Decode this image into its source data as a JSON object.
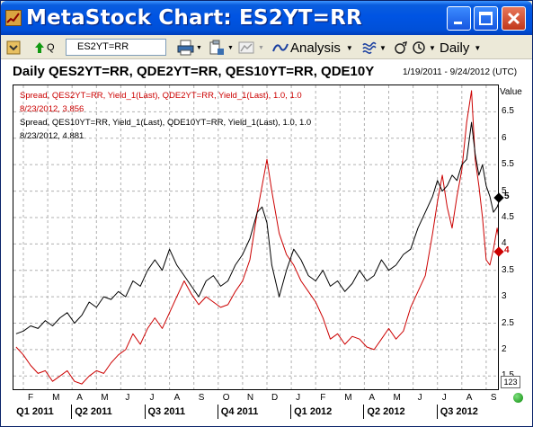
{
  "window": {
    "title": "MetaStock Chart:  ES2YT=RR"
  },
  "toolbar": {
    "quote_label": "Q",
    "symbol": "ES2YT=RR",
    "analysis_label": "Analysis",
    "period_label": "Daily"
  },
  "chart": {
    "title": "Daily QES2YT=RR, QDE2YT=RR, QES10YT=RR, QDE10Y",
    "date_range": "1/19/2011 - 9/24/2012 (UTC)",
    "legend1_line1": "Spread, QES2YT=RR, Yield_1(Last), QDE2YT=RR, Yield_1(Last),  1.0, 1.0",
    "legend1_line2": "8/23/2012, 3.856",
    "legend2_line1": "Spread, QES10YT=RR, Yield_1(Last), QDE10YT=RR, Yield_1(Last),  1.0, 1.0",
    "legend2_line2": "8/23/2012, 4.881",
    "value_axis_title": "Value",
    "value_box": "123",
    "colors": {
      "series_2y": "#CC0000",
      "series_10y": "#000000",
      "grid": "#B0B0B0"
    }
  },
  "chart_data": {
    "type": "line",
    "title": "Daily QES2YT=RR, QDE2YT=RR, QES10YT=RR, QDE10Y",
    "subtitle": "1/19/2011 - 9/24/2012 (UTC)",
    "ylabel": "Value",
    "ylim": [
      1.25,
      7.0
    ],
    "yticks": [
      "1.5",
      "2",
      "2.5",
      "3",
      "3.5",
      "4",
      "4.5",
      "5",
      "5.5",
      "6",
      "6.5"
    ],
    "y_highlight": [
      {
        "label": "5",
        "value": 4.881,
        "color": "#000000"
      },
      {
        "label": "4",
        "value": 3.856,
        "color": "#CC0000"
      }
    ],
    "months": [
      "F",
      "M",
      "A",
      "M",
      "J",
      "J",
      "A",
      "S",
      "O",
      "N",
      "D",
      "J",
      "F",
      "M",
      "A",
      "M",
      "J",
      "J",
      "A",
      "S"
    ],
    "quarters": [
      "Q1 2011",
      "Q2 2011",
      "Q3 2011",
      "Q4 2011",
      "Q1 2012",
      "Q2 2012",
      "Q3 2012"
    ],
    "x_units": "month index (0 = start of Feb 2011)",
    "grid": true,
    "series": [
      {
        "name": "Spread, QES2YT=RR, Yield_1(Last), QDE2YT=RR, Yield_1(Last),  1.0, 1.0",
        "color": "#CC0000",
        "points": [
          [
            -0.3,
            2.05
          ],
          [
            0,
            1.9
          ],
          [
            0.3,
            1.7
          ],
          [
            0.6,
            1.55
          ],
          [
            0.9,
            1.6
          ],
          [
            1.2,
            1.4
          ],
          [
            1.5,
            1.5
          ],
          [
            1.8,
            1.6
          ],
          [
            2.1,
            1.4
          ],
          [
            2.4,
            1.35
          ],
          [
            2.7,
            1.5
          ],
          [
            3,
            1.6
          ],
          [
            3.3,
            1.55
          ],
          [
            3.6,
            1.75
          ],
          [
            3.9,
            1.9
          ],
          [
            4.2,
            2.0
          ],
          [
            4.5,
            2.3
          ],
          [
            4.8,
            2.1
          ],
          [
            5.1,
            2.4
          ],
          [
            5.4,
            2.6
          ],
          [
            5.7,
            2.4
          ],
          [
            6,
            2.7
          ],
          [
            6.3,
            3.0
          ],
          [
            6.6,
            3.3
          ],
          [
            6.9,
            3.05
          ],
          [
            7.2,
            2.85
          ],
          [
            7.5,
            3.0
          ],
          [
            7.8,
            2.9
          ],
          [
            8.1,
            2.8
          ],
          [
            8.4,
            2.85
          ],
          [
            8.7,
            3.1
          ],
          [
            9,
            3.3
          ],
          [
            9.3,
            3.7
          ],
          [
            9.6,
            4.6
          ],
          [
            9.8,
            5.1
          ],
          [
            10,
            5.6
          ],
          [
            10.2,
            5.0
          ],
          [
            10.5,
            4.2
          ],
          [
            10.8,
            3.8
          ],
          [
            11.1,
            3.6
          ],
          [
            11.4,
            3.3
          ],
          [
            11.7,
            3.1
          ],
          [
            12,
            2.9
          ],
          [
            12.3,
            2.6
          ],
          [
            12.6,
            2.2
          ],
          [
            12.9,
            2.3
          ],
          [
            13.2,
            2.1
          ],
          [
            13.5,
            2.25
          ],
          [
            13.8,
            2.2
          ],
          [
            14.1,
            2.05
          ],
          [
            14.4,
            2.0
          ],
          [
            14.7,
            2.2
          ],
          [
            15,
            2.4
          ],
          [
            15.3,
            2.2
          ],
          [
            15.6,
            2.35
          ],
          [
            15.9,
            2.8
          ],
          [
            16.2,
            3.1
          ],
          [
            16.5,
            3.4
          ],
          [
            16.8,
            4.2
          ],
          [
            17,
            4.8
          ],
          [
            17.2,
            5.3
          ],
          [
            17.4,
            4.7
          ],
          [
            17.6,
            4.3
          ],
          [
            17.8,
            4.9
          ],
          [
            18,
            5.4
          ],
          [
            18.2,
            6.3
          ],
          [
            18.4,
            6.9
          ],
          [
            18.55,
            5.6
          ],
          [
            18.7,
            5.1
          ],
          [
            18.85,
            4.5
          ],
          [
            19,
            3.7
          ],
          [
            19.15,
            3.6
          ],
          [
            19.3,
            3.9
          ],
          [
            19.45,
            4.3
          ],
          [
            19.6,
            3.85
          ]
        ]
      },
      {
        "name": "Spread, QES10YT=RR, Yield_1(Last), QDE10YT=RR, Yield_1(Last),  1.0, 1.0",
        "color": "#000000",
        "points": [
          [
            -0.3,
            2.3
          ],
          [
            0,
            2.35
          ],
          [
            0.3,
            2.45
          ],
          [
            0.6,
            2.4
          ],
          [
            0.9,
            2.55
          ],
          [
            1.2,
            2.45
          ],
          [
            1.5,
            2.6
          ],
          [
            1.8,
            2.7
          ],
          [
            2.1,
            2.5
          ],
          [
            2.4,
            2.65
          ],
          [
            2.7,
            2.9
          ],
          [
            3,
            2.8
          ],
          [
            3.3,
            3.0
          ],
          [
            3.6,
            2.95
          ],
          [
            3.9,
            3.1
          ],
          [
            4.2,
            3.0
          ],
          [
            4.5,
            3.3
          ],
          [
            4.8,
            3.2
          ],
          [
            5.1,
            3.5
          ],
          [
            5.4,
            3.7
          ],
          [
            5.7,
            3.5
          ],
          [
            6,
            3.9
          ],
          [
            6.3,
            3.6
          ],
          [
            6.6,
            3.4
          ],
          [
            6.9,
            3.2
          ],
          [
            7.2,
            3.0
          ],
          [
            7.5,
            3.3
          ],
          [
            7.8,
            3.4
          ],
          [
            8.1,
            3.2
          ],
          [
            8.4,
            3.3
          ],
          [
            8.7,
            3.6
          ],
          [
            9,
            3.8
          ],
          [
            9.3,
            4.1
          ],
          [
            9.6,
            4.6
          ],
          [
            9.8,
            4.7
          ],
          [
            10,
            4.4
          ],
          [
            10.2,
            3.6
          ],
          [
            10.5,
            3.0
          ],
          [
            10.8,
            3.5
          ],
          [
            11.1,
            3.9
          ],
          [
            11.4,
            3.7
          ],
          [
            11.7,
            3.4
          ],
          [
            12,
            3.3
          ],
          [
            12.3,
            3.5
          ],
          [
            12.6,
            3.2
          ],
          [
            12.9,
            3.3
          ],
          [
            13.2,
            3.1
          ],
          [
            13.5,
            3.25
          ],
          [
            13.8,
            3.5
          ],
          [
            14.1,
            3.3
          ],
          [
            14.4,
            3.4
          ],
          [
            14.7,
            3.7
          ],
          [
            15,
            3.5
          ],
          [
            15.3,
            3.6
          ],
          [
            15.6,
            3.8
          ],
          [
            15.9,
            3.9
          ],
          [
            16.2,
            4.3
          ],
          [
            16.5,
            4.6
          ],
          [
            16.8,
            4.9
          ],
          [
            17,
            5.2
          ],
          [
            17.2,
            5.0
          ],
          [
            17.4,
            5.1
          ],
          [
            17.6,
            5.3
          ],
          [
            17.8,
            5.2
          ],
          [
            18,
            5.5
          ],
          [
            18.2,
            5.6
          ],
          [
            18.4,
            6.3
          ],
          [
            18.55,
            5.7
          ],
          [
            18.7,
            5.3
          ],
          [
            18.85,
            5.5
          ],
          [
            19,
            5.1
          ],
          [
            19.15,
            4.9
          ],
          [
            19.3,
            4.6
          ],
          [
            19.45,
            4.7
          ],
          [
            19.6,
            4.88
          ]
        ]
      }
    ]
  }
}
